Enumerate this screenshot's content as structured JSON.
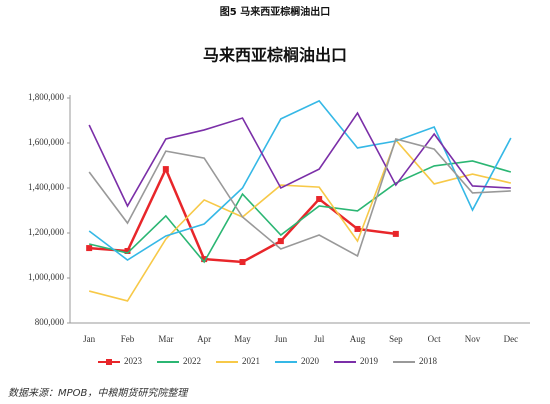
{
  "caption": "图5 马来西亚棕榈油出口",
  "source": "数据来源：MPOB，中粮期货研究院整理",
  "chart_data": {
    "type": "line",
    "title": "马来西亚棕榈油出口",
    "categories": [
      "Jan",
      "Feb",
      "Mar",
      "Apr",
      "May",
      "Jun",
      "Jul",
      "Aug",
      "Sep",
      "Oct",
      "Nov",
      "Dec"
    ],
    "ylim": [
      800000,
      1800000
    ],
    "yticks": [
      {
        "value": 800000,
        "label": "800,000"
      },
      {
        "value": 1000000,
        "label": "1,000,000"
      },
      {
        "value": 1200000,
        "label": "1,200,000"
      },
      {
        "value": 1400000,
        "label": "1,400,000"
      },
      {
        "value": 1600000,
        "label": "1,600,000"
      },
      {
        "value": 1800000,
        "label": "1,800,000"
      }
    ],
    "grid": false,
    "legend": "bottom",
    "series": [
      {
        "name": "2023",
        "color": "#e8262a",
        "marker": "square",
        "values": [
          1133000,
          1120000,
          1484000,
          1084000,
          1071000,
          1164000,
          1351000,
          1218000,
          1196000,
          null,
          null,
          null
        ]
      },
      {
        "name": "2022",
        "color": "#2bb673",
        "values": [
          1151000,
          1111000,
          1276000,
          1071000,
          1373000,
          1191000,
          1320000,
          1298000,
          1422000,
          1498000,
          1520000,
          1471000
        ]
      },
      {
        "name": "2021",
        "color": "#f7c948",
        "values": [
          942000,
          898000,
          1173000,
          1347000,
          1271000,
          1413000,
          1404000,
          1164000,
          1613000,
          1418000,
          1462000,
          1422000
        ]
      },
      {
        "name": "2020",
        "color": "#35b8e6",
        "values": [
          1209000,
          1080000,
          1187000,
          1240000,
          1400000,
          1707000,
          1787000,
          1578000,
          1609000,
          1671000,
          1302000,
          1622000
        ]
      },
      {
        "name": "2019",
        "color": "#7b2fa8",
        "values": [
          1680000,
          1320000,
          1618000,
          1658000,
          1711000,
          1400000,
          1484000,
          1733000,
          1413000,
          1640000,
          1409000,
          1400000
        ]
      },
      {
        "name": "2018",
        "color": "#999999",
        "values": [
          1471000,
          1244000,
          1564000,
          1533000,
          1271000,
          1129000,
          1191000,
          1098000,
          1618000,
          1573000,
          1378000,
          1387000
        ]
      }
    ]
  }
}
